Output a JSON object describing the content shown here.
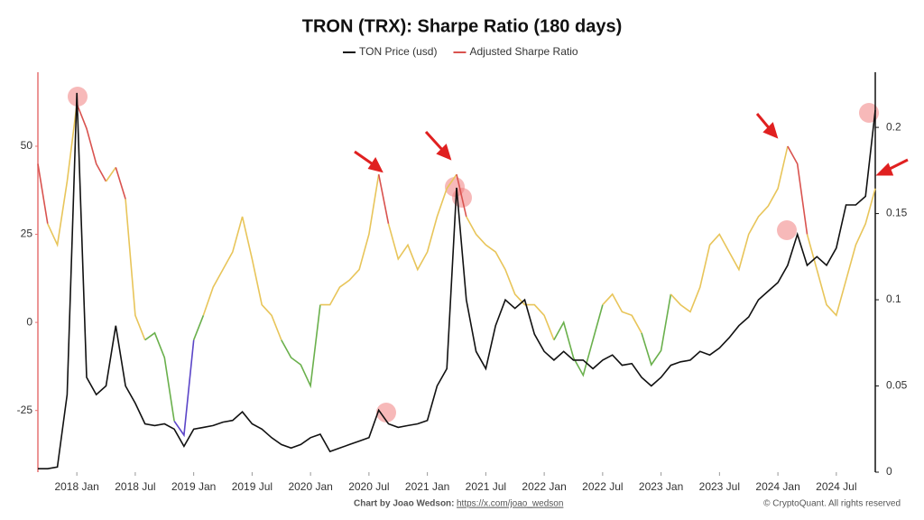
{
  "chart_data": {
    "type": "line",
    "title": "TRON (TRX): Sharpe Ratio (180 days)",
    "footer_credit": "Chart by Joao Wedson:",
    "footer_link": "https://x.com/joao_wedson",
    "footer_copyright": "© CryptoQuant. All rights reserved",
    "x": [
      "2017-09",
      "2017-10",
      "2017-11",
      "2017-12",
      "2018-01",
      "2018-02",
      "2018-03",
      "2018-04",
      "2018-05",
      "2018-06",
      "2018-07",
      "2018-08",
      "2018-09",
      "2018-10",
      "2018-11",
      "2018-12",
      "2019-01",
      "2019-02",
      "2019-03",
      "2019-04",
      "2019-05",
      "2019-06",
      "2019-07",
      "2019-08",
      "2019-09",
      "2019-10",
      "2019-11",
      "2019-12",
      "2020-01",
      "2020-02",
      "2020-03",
      "2020-04",
      "2020-05",
      "2020-06",
      "2020-07",
      "2020-08",
      "2020-09",
      "2020-10",
      "2020-11",
      "2020-12",
      "2021-01",
      "2021-02",
      "2021-03",
      "2021-04",
      "2021-05",
      "2021-06",
      "2021-07",
      "2021-08",
      "2021-09",
      "2021-10",
      "2021-11",
      "2021-12",
      "2022-01",
      "2022-02",
      "2022-03",
      "2022-04",
      "2022-05",
      "2022-06",
      "2022-07",
      "2022-08",
      "2022-09",
      "2022-10",
      "2022-11",
      "2022-12",
      "2023-01",
      "2023-02",
      "2023-03",
      "2023-04",
      "2023-05",
      "2023-06",
      "2023-07",
      "2023-08",
      "2023-09",
      "2023-10",
      "2023-11",
      "2023-12",
      "2024-01",
      "2024-02",
      "2024-03",
      "2024-04",
      "2024-05",
      "2024-06",
      "2024-07",
      "2024-08",
      "2024-09",
      "2024-10",
      "2024-11"
    ],
    "xlim": [
      "2017-09",
      "2024-11"
    ],
    "xticks": [
      {
        "value": "2018-01",
        "label": "2018 Jan"
      },
      {
        "value": "2018-07",
        "label": "2018 Jul"
      },
      {
        "value": "2019-01",
        "label": "2019 Jan"
      },
      {
        "value": "2019-07",
        "label": "2019 Jul"
      },
      {
        "value": "2020-01",
        "label": "2020 Jan"
      },
      {
        "value": "2020-07",
        "label": "2020 Jul"
      },
      {
        "value": "2021-01",
        "label": "2021 Jan"
      },
      {
        "value": "2021-07",
        "label": "2021 Jul"
      },
      {
        "value": "2022-01",
        "label": "2022 Jan"
      },
      {
        "value": "2022-07",
        "label": "2022 Jul"
      },
      {
        "value": "2023-01",
        "label": "2023 Jan"
      },
      {
        "value": "2023-07",
        "label": "2023 Jul"
      },
      {
        "value": "2024-01",
        "label": "2024 Jan"
      },
      {
        "value": "2024-07",
        "label": "2024 Jul"
      }
    ],
    "ylim": [
      -42.5,
      71
    ],
    "yticks": [
      -25,
      0,
      25,
      50
    ],
    "y2lim": [
      0,
      0.232
    ],
    "y2ticks": [
      0,
      0.05,
      0.1,
      0.15,
      0.2
    ],
    "series": [
      {
        "name": "TON Price (usd)",
        "color": "#111111",
        "axis": "y2",
        "values": [
          0.002,
          0.002,
          0.003,
          0.045,
          0.22,
          0.055,
          0.045,
          0.05,
          0.085,
          0.05,
          0.04,
          0.028,
          0.027,
          0.028,
          0.025,
          0.015,
          0.025,
          0.026,
          0.027,
          0.029,
          0.03,
          0.035,
          0.028,
          0.025,
          0.02,
          0.016,
          0.014,
          0.016,
          0.02,
          0.022,
          0.012,
          0.014,
          0.016,
          0.018,
          0.02,
          0.036,
          0.028,
          0.026,
          0.027,
          0.028,
          0.03,
          0.05,
          0.06,
          0.165,
          0.1,
          0.07,
          0.06,
          0.085,
          0.1,
          0.095,
          0.1,
          0.08,
          0.07,
          0.065,
          0.07,
          0.065,
          0.065,
          0.06,
          0.065,
          0.068,
          0.062,
          0.063,
          0.055,
          0.05,
          0.055,
          0.062,
          0.064,
          0.065,
          0.07,
          0.068,
          0.072,
          0.078,
          0.085,
          0.09,
          0.1,
          0.105,
          0.11,
          0.12,
          0.138,
          0.12,
          0.125,
          0.12,
          0.13,
          0.155,
          0.155,
          0.16,
          0.21
        ]
      },
      {
        "name": "Adjusted Sharpe Ratio",
        "color": "#d9534f",
        "color_bands": [
          {
            "above": 40,
            "color": "#d9534f"
          },
          {
            "above": 0,
            "color": "#e8c55a"
          },
          {
            "above": -25,
            "color": "#6ab04c"
          }
        ],
        "below_color": "#5b45c8",
        "values": [
          45,
          28,
          22,
          40,
          62,
          55,
          45,
          40,
          44,
          35,
          2,
          -5,
          -3,
          -10,
          -28,
          -32,
          -5,
          2,
          10,
          15,
          20,
          30,
          18,
          5,
          2,
          -5,
          -10,
          -12,
          -18,
          5,
          5,
          10,
          12,
          15,
          25,
          42,
          28,
          18,
          22,
          15,
          20,
          30,
          38,
          42,
          30,
          25,
          22,
          20,
          15,
          8,
          5,
          5,
          2,
          -5,
          0,
          -10,
          -15,
          -5,
          5,
          8,
          3,
          2,
          -3,
          -12,
          -8,
          8,
          5,
          3,
          10,
          22,
          25,
          20,
          15,
          25,
          30,
          33,
          38,
          50,
          45,
          25,
          15,
          5,
          2,
          12,
          22,
          28,
          38
        ]
      }
    ]
  }
}
